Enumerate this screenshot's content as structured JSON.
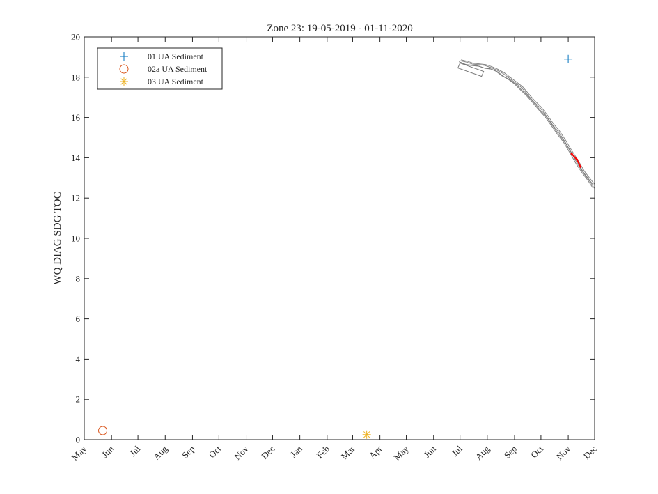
{
  "chart_data": {
    "type": "line",
    "title": "Zone 23: 19-05-2019 - 01-11-2020",
    "xlabel": "",
    "ylabel": "WQ DIAG SDG TOC",
    "ylim": [
      0,
      20
    ],
    "yticks": [
      0,
      2,
      4,
      6,
      8,
      10,
      12,
      14,
      16,
      18,
      20
    ],
    "xlim": [
      "2019-05-01",
      "2020-12-01"
    ],
    "xticks": [
      {
        "date": "2019-05-01",
        "label": "May"
      },
      {
        "date": "2019-06-01",
        "label": "Jun"
      },
      {
        "date": "2019-07-01",
        "label": "Jul"
      },
      {
        "date": "2019-08-01",
        "label": "Aug"
      },
      {
        "date": "2019-09-01",
        "label": "Sep"
      },
      {
        "date": "2019-10-01",
        "label": "Oct"
      },
      {
        "date": "2019-11-01",
        "label": "Nov"
      },
      {
        "date": "2019-12-01",
        "label": "Dec"
      },
      {
        "date": "2020-01-01",
        "label": "Jan"
      },
      {
        "date": "2020-02-01",
        "label": "Feb"
      },
      {
        "date": "2020-03-01",
        "label": "Mar"
      },
      {
        "date": "2020-04-01",
        "label": "Apr"
      },
      {
        "date": "2020-05-01",
        "label": "May"
      },
      {
        "date": "2020-06-01",
        "label": "Jun"
      },
      {
        "date": "2020-07-01",
        "label": "Jul"
      },
      {
        "date": "2020-08-01",
        "label": "Aug"
      },
      {
        "date": "2020-09-01",
        "label": "Sep"
      },
      {
        "date": "2020-10-01",
        "label": "Oct"
      },
      {
        "date": "2020-11-01",
        "label": "Nov"
      },
      {
        "date": "2020-12-01",
        "label": "Dec"
      }
    ],
    "grid": false,
    "legend_position": "top-left",
    "legend": [
      {
        "label": "01 UA Sediment",
        "marker": "plus",
        "color": "#0072BD"
      },
      {
        "label": "02a UA Sediment",
        "marker": "circle",
        "color": "#D95319"
      },
      {
        "label": "03 UA Sediment",
        "marker": "asterisk",
        "color": "#EDB120"
      }
    ],
    "series": [
      {
        "name": "01 UA Sediment",
        "marker": "plus",
        "color": "#0072BD",
        "points": [
          {
            "x": "2020-11-01",
            "y": 18.9
          }
        ]
      },
      {
        "name": "02a UA Sediment",
        "marker": "circle",
        "color": "#D95319",
        "points": [
          {
            "x": "2019-05-22",
            "y": 0.45
          }
        ]
      },
      {
        "name": "03 UA Sediment",
        "marker": "asterisk",
        "color": "#EDB120",
        "points": [
          {
            "x": "2020-03-17",
            "y": 0.25
          }
        ]
      }
    ],
    "model_line": {
      "color": "#777777",
      "points": [
        {
          "x": "2020-07-01",
          "y": 18.82
        },
        {
          "x": "2020-07-08",
          "y": 18.72
        },
        {
          "x": "2020-07-15",
          "y": 18.65
        },
        {
          "x": "2020-07-22",
          "y": 18.62
        },
        {
          "x": "2020-07-29",
          "y": 18.55
        },
        {
          "x": "2020-08-05",
          "y": 18.48
        },
        {
          "x": "2020-08-12",
          "y": 18.35
        },
        {
          "x": "2020-08-19",
          "y": 18.15
        },
        {
          "x": "2020-08-26",
          "y": 17.95
        },
        {
          "x": "2020-09-02",
          "y": 17.72
        },
        {
          "x": "2020-09-09",
          "y": 17.45
        },
        {
          "x": "2020-09-16",
          "y": 17.12
        },
        {
          "x": "2020-09-23",
          "y": 16.78
        },
        {
          "x": "2020-09-30",
          "y": 16.45
        },
        {
          "x": "2020-10-07",
          "y": 16.08
        },
        {
          "x": "2020-10-14",
          "y": 15.65
        },
        {
          "x": "2020-10-21",
          "y": 15.25
        },
        {
          "x": "2020-10-28",
          "y": 14.82
        },
        {
          "x": "2020-11-04",
          "y": 14.3
        },
        {
          "x": "2020-11-11",
          "y": 13.8
        },
        {
          "x": "2020-11-18",
          "y": 13.3
        },
        {
          "x": "2020-11-25",
          "y": 12.9
        },
        {
          "x": "2020-11-30",
          "y": 12.6
        }
      ]
    },
    "highlight_segment": {
      "color": "#FF0000",
      "points": [
        {
          "x": "2020-11-05",
          "y": 14.2
        },
        {
          "x": "2020-11-11",
          "y": 13.9
        },
        {
          "x": "2020-11-15",
          "y": 13.55
        }
      ]
    }
  }
}
